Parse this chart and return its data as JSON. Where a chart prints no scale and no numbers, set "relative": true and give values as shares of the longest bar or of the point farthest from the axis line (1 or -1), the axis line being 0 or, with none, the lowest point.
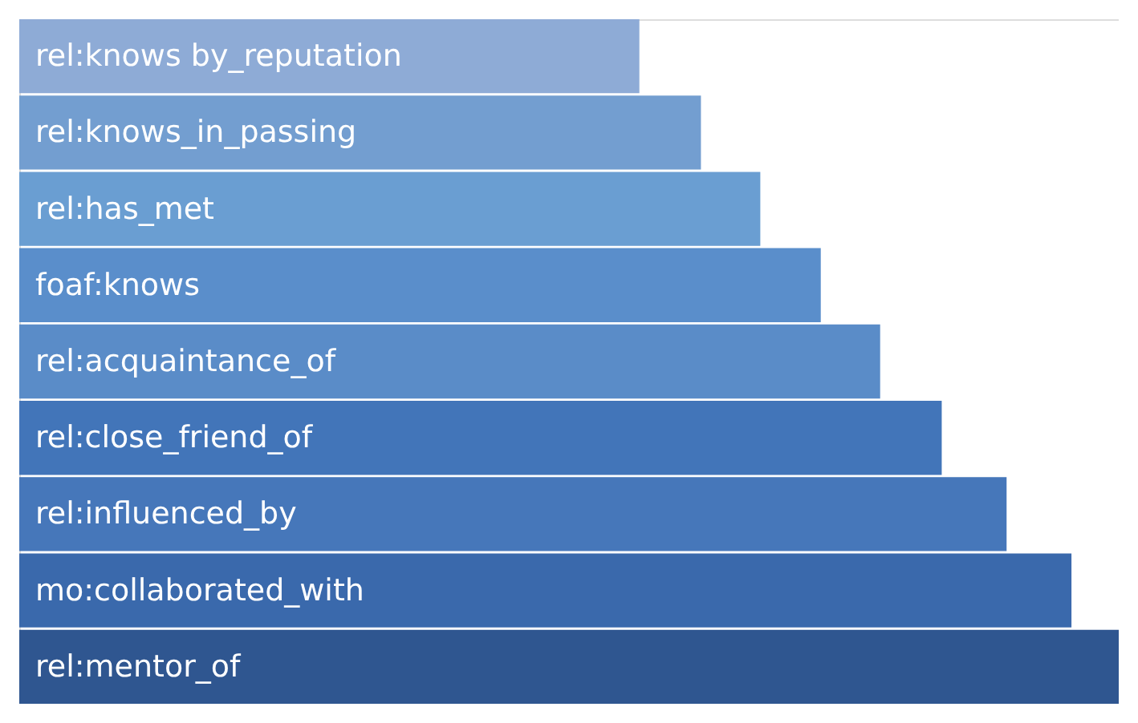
{
  "chart_data": {
    "type": "bar",
    "orientation": "horizontal",
    "relative": true,
    "categories": [
      "rel:knows by_reputation",
      "rel:knows_in_passing",
      "rel:has_met",
      "foaf:knows",
      "rel:acquaintance_of",
      "rel:close_friend_of",
      "rel:influenced_by",
      "mo:collaborated_with",
      "rel:mentor_of"
    ],
    "values": [
      0.564,
      0.62,
      0.674,
      0.729,
      0.783,
      0.839,
      0.898,
      0.957,
      1
    ],
    "colors": [
      "#8eabd6",
      "#739ed0",
      "#6a9ed2",
      "#5a8ecb",
      "#5a8cc8",
      "#4275b9",
      "#4677ba",
      "#3a69ac",
      "#2f5690"
    ]
  }
}
